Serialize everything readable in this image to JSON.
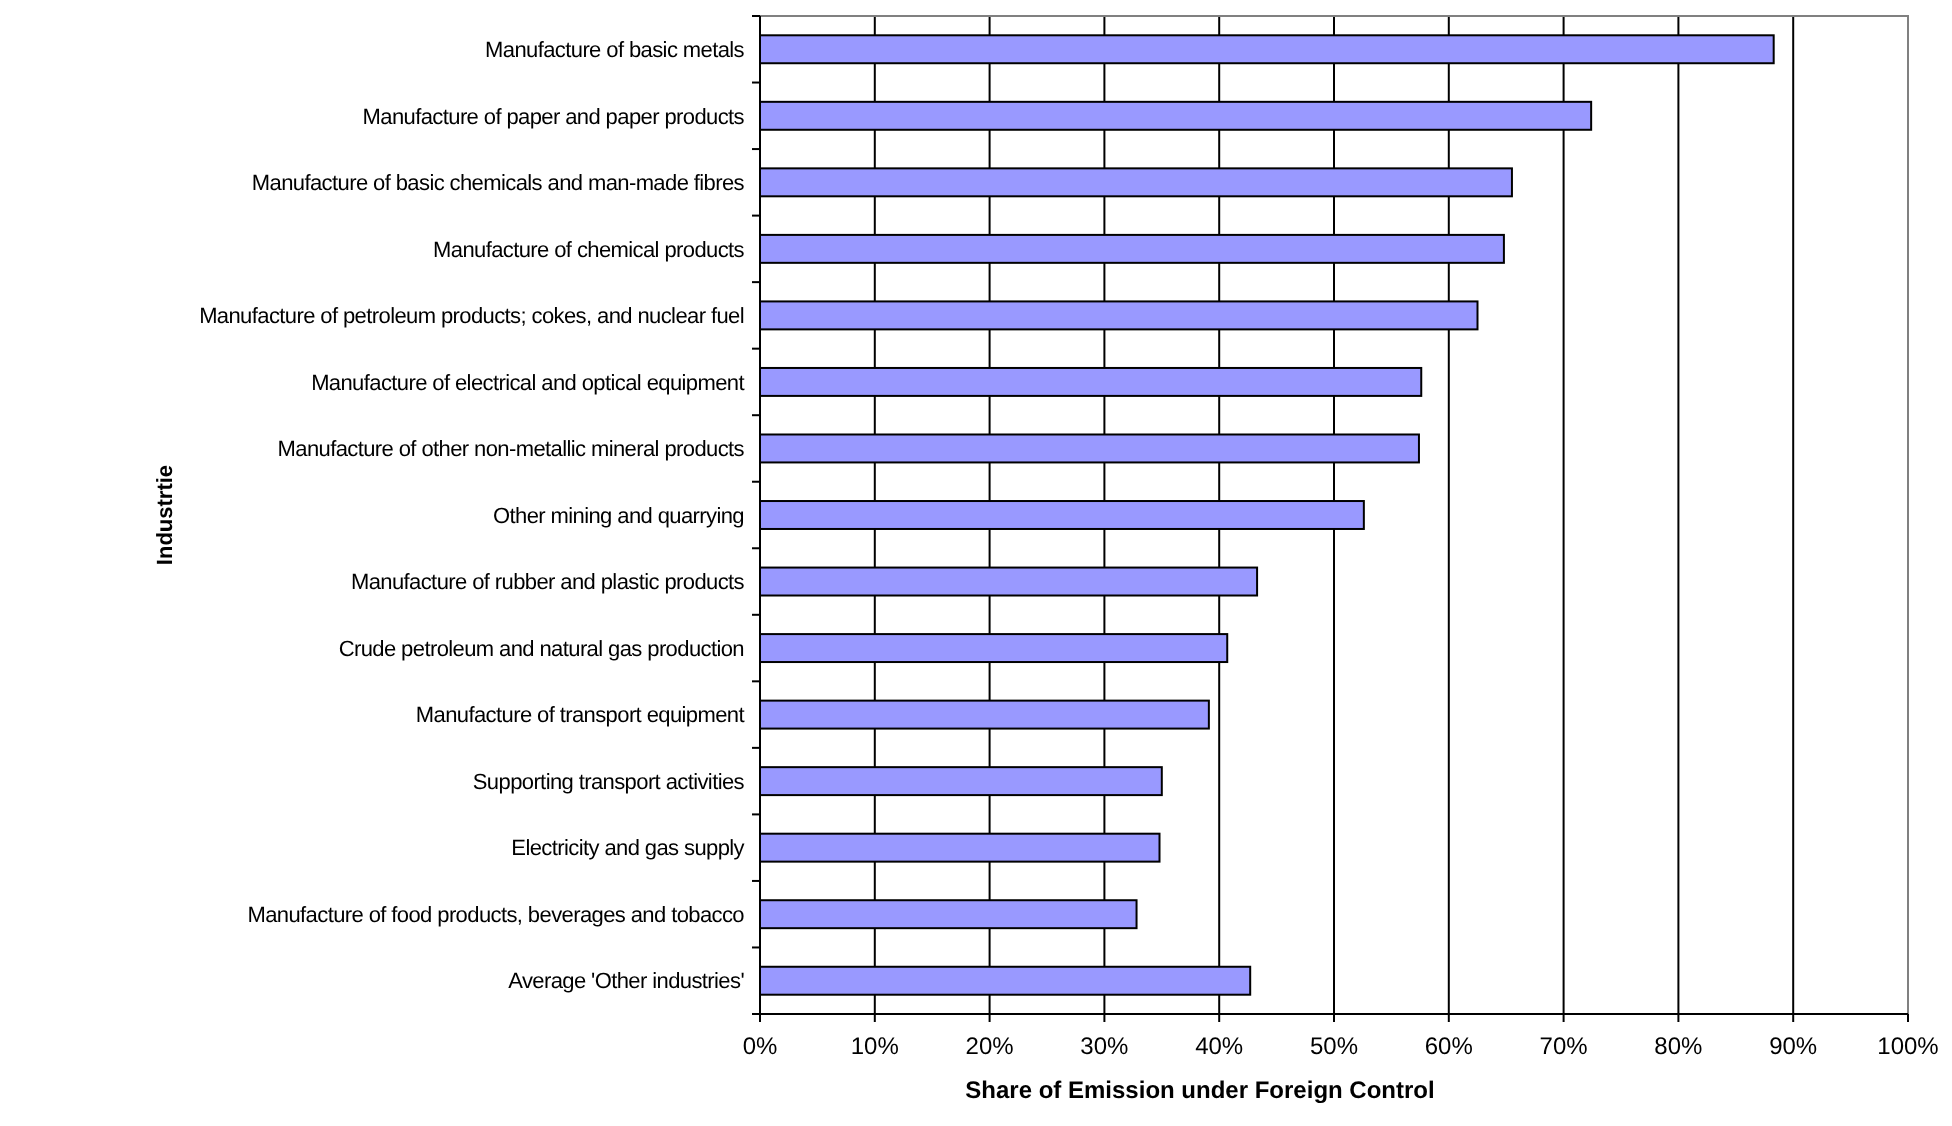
{
  "chart_data": {
    "type": "bar",
    "orientation": "horizontal",
    "xlabel": "Share of Emission under Foreign Control",
    "ylabel": "Industrtie",
    "categories": [
      "Manufacture of basic metals",
      "Manufacture of paper and paper products",
      "Manufacture of basic chemicals and man-made fibres",
      "Manufacture of chemical products",
      "Manufacture of petroleum products; cokes, and nuclear fuel",
      "Manufacture of electrical and optical equipment",
      "Manufacture of other non-metallic mineral products",
      "Other mining and quarrying",
      "Manufacture of rubber and plastic products",
      "Crude petroleum and natural gas production",
      "Manufacture of transport equipment",
      "Supporting transport activities",
      "Electricity and gas supply",
      "Manufacture of food products, beverages and tobacco",
      "Average 'Other industries'"
    ],
    "values": [
      88.3,
      72.4,
      65.5,
      64.8,
      62.5,
      57.6,
      57.4,
      52.6,
      43.3,
      40.7,
      39.1,
      35.0,
      34.8,
      32.8,
      42.7
    ],
    "color": "#9999ff",
    "xlim": [
      0,
      100
    ],
    "xticks": [
      {
        "value": 0,
        "label": "0%"
      },
      {
        "value": 10,
        "label": "10%"
      },
      {
        "value": 20,
        "label": "20%"
      },
      {
        "value": 30,
        "label": "30%"
      },
      {
        "value": 40,
        "label": "40%"
      },
      {
        "value": 50,
        "label": "50%"
      },
      {
        "value": 60,
        "label": "60%"
      },
      {
        "value": 70,
        "label": "70%"
      },
      {
        "value": 80,
        "label": "80%"
      },
      {
        "value": 90,
        "label": "90%"
      },
      {
        "value": 100,
        "label": "100%"
      }
    ],
    "grid": "x"
  }
}
